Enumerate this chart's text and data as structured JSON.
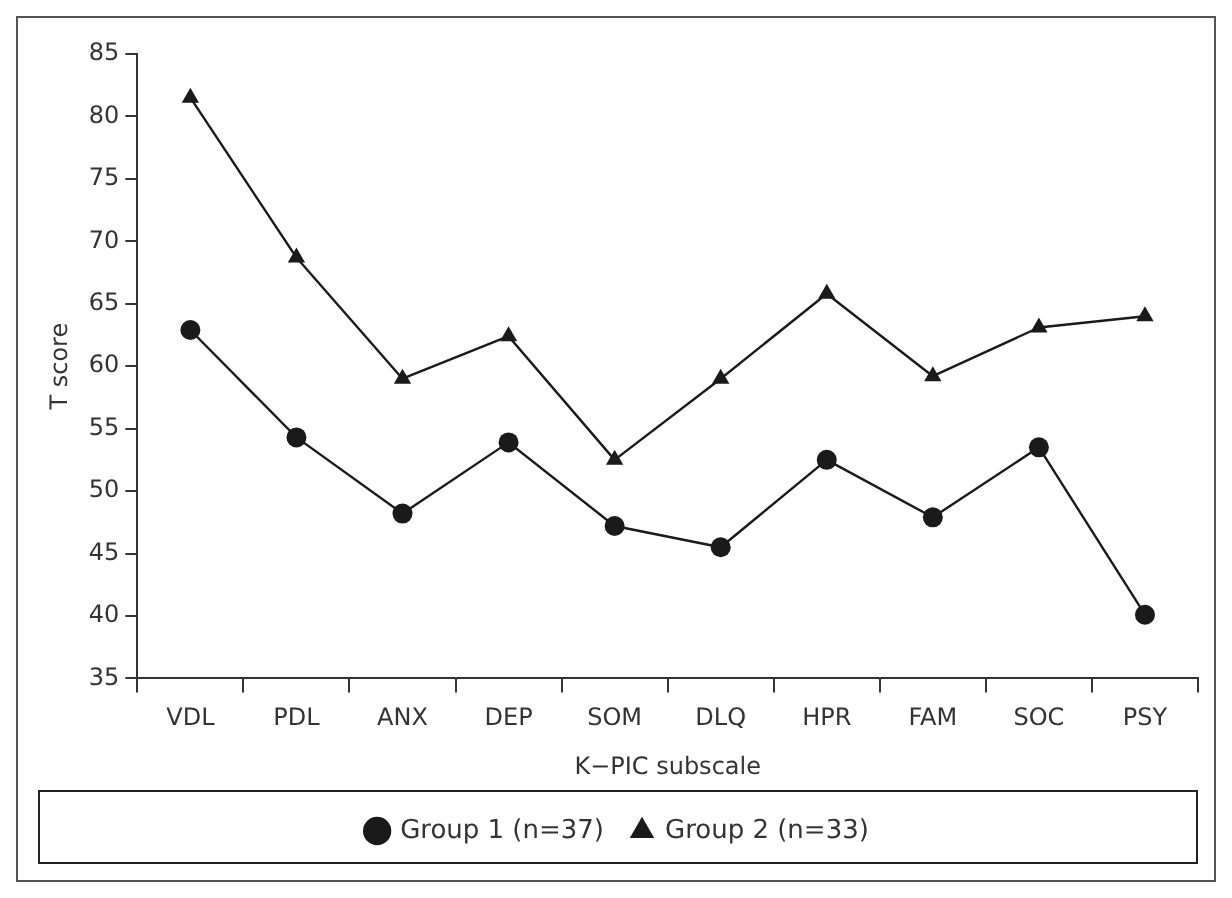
{
  "chart_data": {
    "type": "line",
    "xlabel": "K−PIC subscale",
    "ylabel": "T score",
    "categories": [
      "VDL",
      "PDL",
      "ANX",
      "DEP",
      "SOM",
      "DLQ",
      "HPR",
      "FAM",
      "SOC",
      "PSY"
    ],
    "series": [
      {
        "name": "Group 1 (n=37)",
        "color": "#1a1a1a",
        "marker": "circle",
        "values": [
          62.9,
          54.3,
          48.2,
          53.9,
          47.2,
          45.5,
          52.5,
          47.9,
          53.5,
          40.1
        ]
      },
      {
        "name": "Group 2 (n=33)",
        "color": "#1a1a1a",
        "marker": "triangle",
        "values": [
          81.5,
          68.7,
          59.0,
          62.4,
          52.5,
          59.0,
          65.8,
          59.2,
          63.1,
          64.0
        ]
      }
    ],
    "ylim": [
      35,
      85
    ],
    "yticks": [
      35,
      40,
      45,
      50,
      55,
      60,
      65,
      70,
      75,
      80,
      85
    ],
    "grid": false,
    "legend": "bottom",
    "line_style": "solid"
  }
}
